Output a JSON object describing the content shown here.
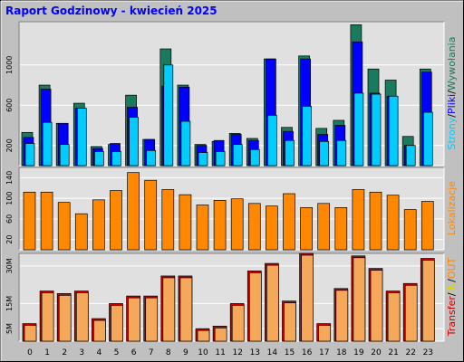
{
  "title": "Raport Godzinowy -  kwiecień 2025",
  "colors": {
    "background": "#c0c0c0",
    "plot_bg": "#e0e0e0",
    "title_color": "#0000ff",
    "grid": "#ffffff",
    "visits": "#1a7a5e",
    "pages": "#0000ff",
    "files": "#00ccff",
    "sites": "#ff8800",
    "kbytes_in": "#ff8800",
    "kbytes_out": "#cc0000",
    "kbytes_fill": "#f5a85a"
  },
  "chart_data": [
    {
      "type": "bar",
      "panel": "hits",
      "categories": [
        "0",
        "1",
        "2",
        "3",
        "4",
        "5",
        "6",
        "7",
        "8",
        "9",
        "10",
        "11",
        "12",
        "13",
        "14",
        "15",
        "16",
        "17",
        "18",
        "19",
        "20",
        "21",
        "22",
        "23"
      ],
      "y_ticks": [
        "200",
        "600",
        "1000"
      ],
      "ylim": [
        0,
        1430
      ],
      "series": [
        {
          "name": "Wywołania",
          "values": [
            330,
            800,
            420,
            620,
            190,
            210,
            700,
            260,
            1160,
            800,
            210,
            240,
            320,
            270,
            1060,
            380,
            1090,
            370,
            450,
            1400,
            960,
            850,
            290,
            960
          ]
        },
        {
          "name": "Strony",
          "values": [
            280,
            760,
            420,
            570,
            170,
            220,
            580,
            260,
            790,
            780,
            200,
            250,
            310,
            250,
            1060,
            340,
            1060,
            310,
            400,
            1230,
            720,
            690,
            200,
            930
          ]
        },
        {
          "name": "Pliki",
          "values": [
            220,
            430,
            210,
            570,
            140,
            140,
            480,
            150,
            1000,
            440,
            130,
            140,
            210,
            160,
            500,
            250,
            590,
            240,
            250,
            720,
            710,
            690,
            200,
            530
          ]
        }
      ],
      "legend": [
        "Strony",
        "/",
        "Pliki",
        "/",
        "Wywołania"
      ]
    },
    {
      "type": "bar",
      "panel": "sites",
      "categories": [
        "0",
        "1",
        "2",
        "3",
        "4",
        "5",
        "6",
        "7",
        "8",
        "9",
        "10",
        "11",
        "12",
        "13",
        "14",
        "15",
        "16",
        "17",
        "18",
        "19",
        "20",
        "21",
        "22",
        "23"
      ],
      "y_ticks": [
        "20",
        "60",
        "100",
        "140"
      ],
      "ylim": [
        0,
        160
      ],
      "series": [
        {
          "name": "Lokalizacje",
          "values": [
            112,
            112,
            92,
            70,
            97,
            115,
            150,
            135,
            117,
            107,
            87,
            96,
            99,
            90,
            85,
            109,
            82,
            90,
            82,
            117,
            112,
            106,
            78,
            94
          ]
        }
      ],
      "legend": [
        "Lokalizacje"
      ]
    },
    {
      "type": "bar",
      "panel": "kbytes",
      "categories": [
        "0",
        "1",
        "2",
        "3",
        "4",
        "5",
        "6",
        "7",
        "8",
        "9",
        "10",
        "11",
        "12",
        "13",
        "14",
        "15",
        "16",
        "17",
        "18",
        "19",
        "20",
        "21",
        "22",
        "23"
      ],
      "y_ticks": [
        "5M",
        "15M",
        "30M"
      ],
      "ylim": [
        0,
        35
      ],
      "series": [
        {
          "name": "Transfer",
          "values": [
            7,
            20,
            19,
            20,
            9,
            15,
            18,
            18,
            26,
            26,
            5,
            6,
            15,
            28,
            31,
            16,
            35,
            7,
            21,
            34,
            29,
            20,
            23,
            33
          ]
        }
      ],
      "legend": [
        "Transfer",
        "/",
        "IN",
        "/",
        "OUT"
      ]
    }
  ]
}
